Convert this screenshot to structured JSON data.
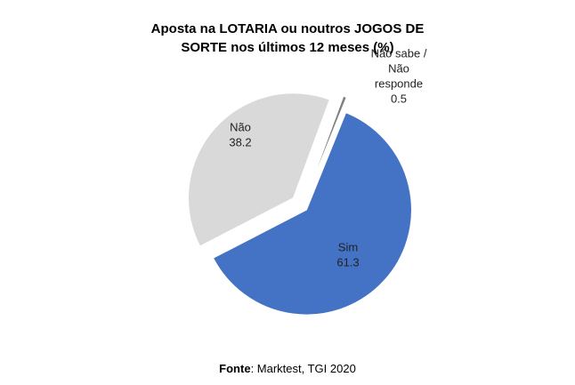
{
  "chart_data": {
    "type": "pie",
    "title_lines": [
      "Aposta na LOTARIA ou noutros JOGOS DE",
      "SORTE nos últimos 12 meses (%)"
    ],
    "categories": [
      "Sim",
      "Não",
      "Não sabe / Não responde"
    ],
    "values": [
      61.3,
      38.2,
      0.5
    ],
    "value_labels": [
      "61.3",
      "38.2",
      "0.5"
    ],
    "label_lines": [
      [
        "Sim",
        "61.3"
      ],
      [
        "Não",
        "38.2"
      ],
      [
        "Não sabe /",
        "Não",
        "responde",
        "0.5"
      ]
    ],
    "colors": [
      "#4472C4",
      "#D9D9D9",
      "#808080"
    ],
    "exploded": true,
    "legend": "none"
  },
  "source": {
    "label": "Fonte",
    "text": ": Marktest, TGI 2020"
  }
}
